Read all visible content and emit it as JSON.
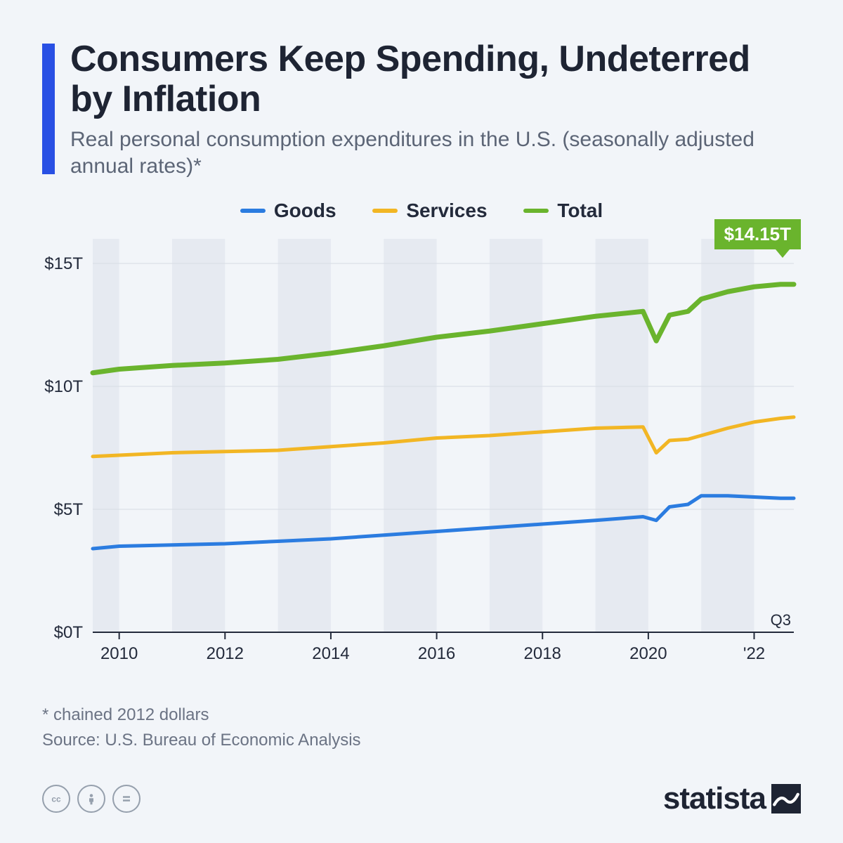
{
  "header": {
    "title": "Consumers Keep Spending, Undeterred by Inflation",
    "subtitle": "Real personal consumption expenditures in the U.S. (seasonally adjusted annual rates)*",
    "accent_color": "#2950e4"
  },
  "legend": {
    "goods": {
      "label": "Goods",
      "color": "#2b7ce0"
    },
    "services": {
      "label": "Services",
      "color": "#f2b624"
    },
    "total": {
      "label": "Total",
      "color": "#6ab42d"
    }
  },
  "chart": {
    "type": "line",
    "background_color": "#f2f5f9",
    "band_color": "#e6eaf1",
    "grid_color": "#d7dce4",
    "axis_color": "#232a3b",
    "label_color": "#232a3b",
    "label_fontsize": 24,
    "line_width_thin": 5,
    "line_width_thick": 7,
    "x_start_year": 2009.5,
    "x_end_year": 2022.75,
    "x_ticks": [
      2010,
      2012,
      2014,
      2016,
      2018,
      2020
    ],
    "x_tick_labels": [
      "2010",
      "2012",
      "2014",
      "2016",
      "2018",
      "2020",
      "'22"
    ],
    "x_last_tick": 2022,
    "x_end_label": "Q3",
    "ylim": [
      0,
      16
    ],
    "y_ticks": [
      0,
      5,
      10,
      15
    ],
    "y_tick_labels": [
      "$0T",
      "$5T",
      "$10T",
      "$15T"
    ],
    "band_years": [
      [
        2009.5,
        2010
      ],
      [
        2011,
        2012
      ],
      [
        2013,
        2014
      ],
      [
        2015,
        2016
      ],
      [
        2017,
        2018
      ],
      [
        2019,
        2020
      ],
      [
        2021,
        2022
      ]
    ],
    "series": {
      "goods": {
        "color": "#2b7ce0",
        "width": 5,
        "points": [
          [
            2009.5,
            3.4
          ],
          [
            2010,
            3.5
          ],
          [
            2011,
            3.55
          ],
          [
            2012,
            3.6
          ],
          [
            2013,
            3.7
          ],
          [
            2014,
            3.8
          ],
          [
            2015,
            3.95
          ],
          [
            2016,
            4.1
          ],
          [
            2017,
            4.25
          ],
          [
            2018,
            4.4
          ],
          [
            2019,
            4.55
          ],
          [
            2019.9,
            4.7
          ],
          [
            2020.15,
            4.55
          ],
          [
            2020.4,
            5.1
          ],
          [
            2020.75,
            5.2
          ],
          [
            2021,
            5.55
          ],
          [
            2021.5,
            5.55
          ],
          [
            2022,
            5.5
          ],
          [
            2022.5,
            5.45
          ],
          [
            2022.75,
            5.45
          ]
        ]
      },
      "services": {
        "color": "#f2b624",
        "width": 5,
        "points": [
          [
            2009.5,
            7.15
          ],
          [
            2010,
            7.2
          ],
          [
            2011,
            7.3
          ],
          [
            2012,
            7.35
          ],
          [
            2013,
            7.4
          ],
          [
            2014,
            7.55
          ],
          [
            2015,
            7.7
          ],
          [
            2016,
            7.9
          ],
          [
            2017,
            8.0
          ],
          [
            2018,
            8.15
          ],
          [
            2019,
            8.3
          ],
          [
            2019.9,
            8.35
          ],
          [
            2020.15,
            7.3
          ],
          [
            2020.4,
            7.8
          ],
          [
            2020.75,
            7.85
          ],
          [
            2021,
            8.0
          ],
          [
            2021.5,
            8.3
          ],
          [
            2022,
            8.55
          ],
          [
            2022.5,
            8.7
          ],
          [
            2022.75,
            8.75
          ]
        ]
      },
      "total": {
        "color": "#6ab42d",
        "width": 7,
        "points": [
          [
            2009.5,
            10.55
          ],
          [
            2010,
            10.7
          ],
          [
            2011,
            10.85
          ],
          [
            2012,
            10.95
          ],
          [
            2013,
            11.1
          ],
          [
            2014,
            11.35
          ],
          [
            2015,
            11.65
          ],
          [
            2016,
            12.0
          ],
          [
            2017,
            12.25
          ],
          [
            2018,
            12.55
          ],
          [
            2019,
            12.85
          ],
          [
            2019.9,
            13.05
          ],
          [
            2020.15,
            11.85
          ],
          [
            2020.4,
            12.9
          ],
          [
            2020.75,
            13.05
          ],
          [
            2021,
            13.55
          ],
          [
            2021.5,
            13.85
          ],
          [
            2022,
            14.05
          ],
          [
            2022.5,
            14.15
          ],
          [
            2022.75,
            14.15
          ]
        ]
      }
    },
    "callout": {
      "text": "$14.15T",
      "color": "#6ab42d"
    }
  },
  "footnote": {
    "line1": "* chained 2012 dollars",
    "line2": "Source: U.S. Bureau of Economic Analysis"
  },
  "footer": {
    "cc": [
      "cc",
      "by",
      "nd"
    ],
    "brand": "statista"
  }
}
